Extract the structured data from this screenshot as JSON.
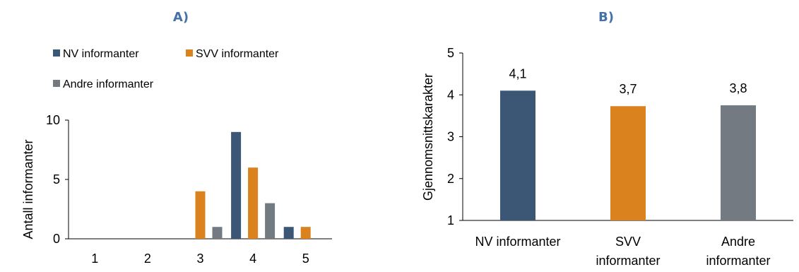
{
  "chart_data": [
    {
      "type": "bar",
      "title": "A)",
      "ylabel": "Antall informanter",
      "xlabel": "",
      "categories": [
        "1",
        "2",
        "3",
        "4",
        "5"
      ],
      "ylim": [
        0,
        10
      ],
      "yticks": [
        "0",
        "5",
        "10"
      ],
      "legend_position": "top-left",
      "series": [
        {
          "name": "NV informanter",
          "color": "#3b5775",
          "values": [
            0,
            0,
            0,
            9,
            1
          ]
        },
        {
          "name": "SVV informanter",
          "color": "#d9821e",
          "values": [
            0,
            0,
            4,
            6,
            1
          ]
        },
        {
          "name": "Andre informanter",
          "color": "#737a82",
          "values": [
            0,
            0,
            1,
            3,
            0
          ]
        }
      ]
    },
    {
      "type": "bar",
      "title": "B)",
      "ylabel": "Gjennomsnittskarakter",
      "xlabel": "",
      "categories": [
        [
          "NV informanter"
        ],
        [
          "SVV",
          "informanter"
        ],
        [
          "Andre",
          "informanter"
        ]
      ],
      "ylim": [
        1,
        5
      ],
      "yticks": [
        "1",
        "2",
        "3",
        "4",
        "5"
      ],
      "values": [
        4.1,
        3.73,
        3.75
      ],
      "value_labels": [
        "4,1",
        "3,7",
        "3,8"
      ],
      "colors": [
        "#3b5775",
        "#d9821e",
        "#737a82"
      ]
    }
  ]
}
